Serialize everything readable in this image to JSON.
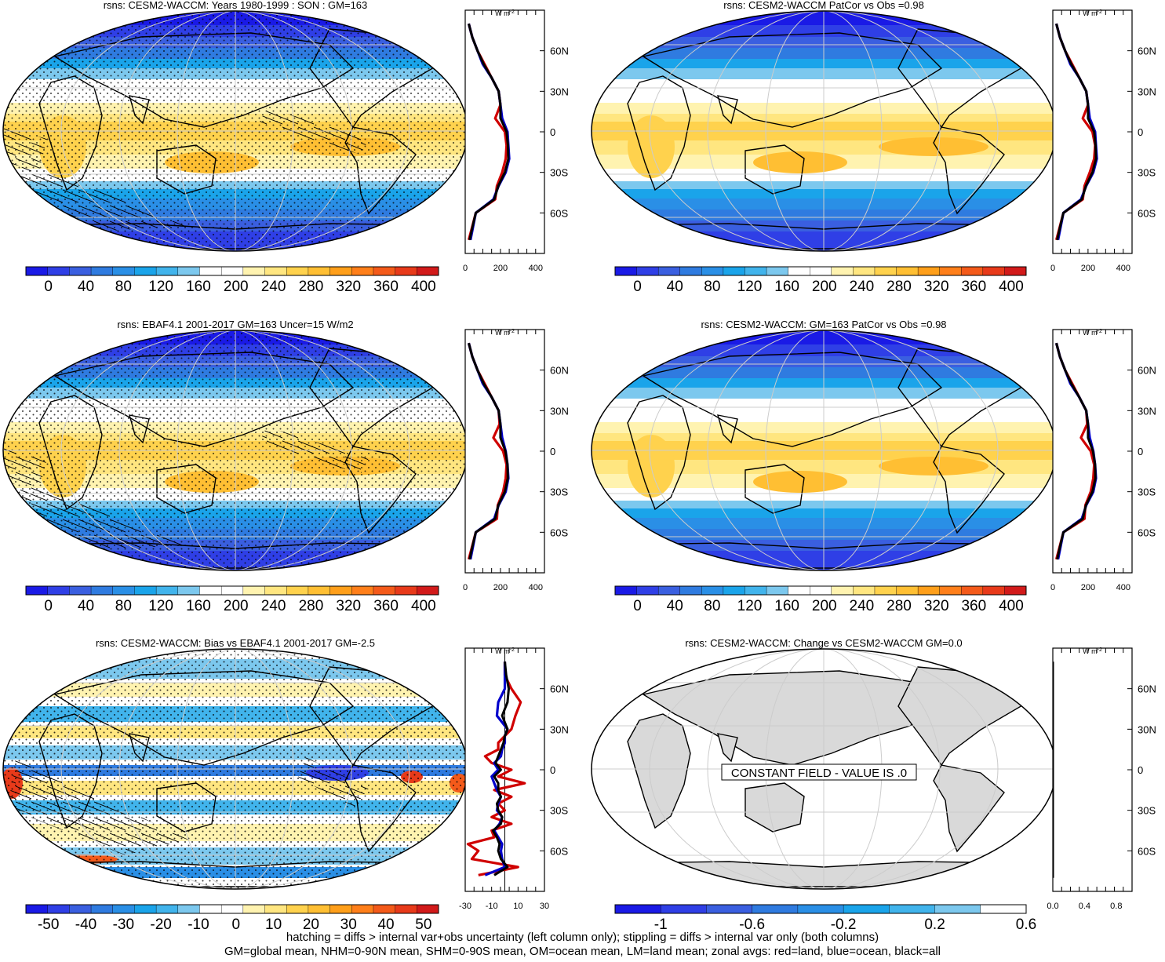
{
  "figure": {
    "footer_line1": "hatching = diffs > internal var+obs uncertainty (left column only); stippling = diffs > internal var only (both columns)",
    "footer_line2": "GM=global mean, NHM=0-90N mean, SHM=0-90S mean, OM=ocean mean, LM=land mean; zonal avgs: red=land, blue=ocean, black=all",
    "zonal_unit_main": "W m",
    "zonal_unit_exp": "-2",
    "lat_labels": [
      "60N",
      "30N",
      "0",
      "30S",
      "60S"
    ],
    "constant_field_text": "CONSTANT FIELD - VALUE IS .0"
  },
  "palettes": {
    "full": [
      "#1a1ae6",
      "#2f3fe6",
      "#3a5fe0",
      "#2f7be0",
      "#2a8fe6",
      "#1aa4ea",
      "#41b4ec",
      "#7cc8ee",
      "#ffffff",
      "#ffffff",
      "#fff3b0",
      "#ffe680",
      "#ffd24d",
      "#ffbf33",
      "#ff9f1a",
      "#ff7f1a",
      "#f45a1a",
      "#e83a1a",
      "#d21a1a"
    ],
    "bias": [
      "#1a1ae6",
      "#2f3fe6",
      "#3a5fe0",
      "#2f7be0",
      "#2a8fe6",
      "#1aa4ea",
      "#41b4ec",
      "#7cc8ee",
      "#ffffff",
      "#ffffff",
      "#fff3b0",
      "#ffe680",
      "#ffd24d",
      "#ffbf33",
      "#ff9f1a",
      "#ff7f1a",
      "#f45a1a",
      "#e83a1a",
      "#d21a1a"
    ],
    "change": [
      "#1a1ae6",
      "#2f3fe6",
      "#3a5fe0",
      "#2f7be0",
      "#2a8fe6",
      "#1aa4ea",
      "#41b4ec",
      "#7cc8ee",
      "#ffffff"
    ]
  },
  "chart_data": [
    {
      "type": "heatmap",
      "title": "rsns: CESM2-WACCM: Years 1980-1999 : SON : GM=163",
      "colorbar_ticks": [
        "0",
        "40",
        "80",
        "120",
        "160",
        "200",
        "240",
        "280",
        "320",
        "360",
        "400"
      ],
      "zonal_xticks": [
        "0",
        "200",
        "400"
      ],
      "zonal_xlim": [
        0,
        450
      ],
      "zonal_series": [
        {
          "color": "#d00000",
          "lat": [
            -80,
            -70,
            -60,
            -50,
            -40,
            -30,
            -20,
            -10,
            0,
            10,
            20,
            30,
            40,
            50,
            60,
            70,
            80
          ],
          "values": [
            20,
            40,
            60,
            170,
            180,
            210,
            230,
            235,
            225,
            170,
            200,
            190,
            150,
            110,
            70,
            40,
            20
          ]
        },
        {
          "color": "#0000cc",
          "lat": [
            -80,
            -70,
            -60,
            -50,
            -40,
            -30,
            -20,
            -10,
            0,
            10,
            20,
            30,
            40,
            50,
            60,
            70,
            80
          ],
          "values": [
            30,
            45,
            60,
            160,
            190,
            230,
            250,
            245,
            240,
            210,
            200,
            190,
            150,
            100,
            70,
            40,
            20
          ]
        },
        {
          "color": "#000000",
          "lat": [
            -80,
            -70,
            -60,
            -50,
            -40,
            -30,
            -20,
            -10,
            0,
            10,
            20,
            30,
            40,
            50,
            60,
            70,
            80
          ],
          "values": [
            25,
            42,
            60,
            165,
            188,
            225,
            245,
            243,
            235,
            200,
            200,
            190,
            150,
            105,
            70,
            40,
            20
          ]
        }
      ]
    },
    {
      "type": "heatmap",
      "title": "rsns: CESM2-WACCM PatCor vs Obs =0.98",
      "colorbar_ticks": [
        "0",
        "40",
        "80",
        "120",
        "160",
        "200",
        "240",
        "280",
        "320",
        "360",
        "400"
      ],
      "zonal_xticks": [
        "0",
        "200",
        "400"
      ],
      "zonal_xlim": [
        0,
        450
      ],
      "zonal_series": [
        {
          "color": "#d00000",
          "lat": [
            -80,
            -70,
            -60,
            -50,
            -40,
            -30,
            -20,
            -10,
            0,
            10,
            20,
            30,
            40,
            50,
            60,
            70,
            80
          ],
          "values": [
            20,
            40,
            60,
            170,
            180,
            210,
            235,
            240,
            225,
            170,
            200,
            190,
            150,
            110,
            70,
            40,
            20
          ]
        },
        {
          "color": "#0000cc",
          "lat": [
            -80,
            -70,
            -60,
            -50,
            -40,
            -30,
            -20,
            -10,
            0,
            10,
            20,
            30,
            40,
            50,
            60,
            70,
            80
          ],
          "values": [
            30,
            45,
            60,
            160,
            190,
            230,
            250,
            245,
            240,
            210,
            200,
            190,
            150,
            100,
            70,
            40,
            20
          ]
        },
        {
          "color": "#000000",
          "lat": [
            -80,
            -70,
            -60,
            -50,
            -40,
            -30,
            -20,
            -10,
            0,
            10,
            20,
            30,
            40,
            50,
            60,
            70,
            80
          ],
          "values": [
            25,
            42,
            60,
            165,
            188,
            225,
            245,
            243,
            235,
            200,
            200,
            190,
            150,
            105,
            70,
            40,
            20
          ]
        }
      ]
    },
    {
      "type": "heatmap",
      "title": "rsns: EBAF4.1 2001-2017 GM=163 Uncer=15 W/m2",
      "colorbar_ticks": [
        "0",
        "40",
        "80",
        "120",
        "160",
        "200",
        "240",
        "280",
        "320",
        "360",
        "400"
      ],
      "zonal_xticks": [
        "0",
        "200",
        "400"
      ],
      "zonal_xlim": [
        0,
        450
      ],
      "zonal_series": [
        {
          "color": "#d00000",
          "lat": [
            -80,
            -70,
            -60,
            -50,
            -40,
            -30,
            -20,
            -10,
            0,
            10,
            20,
            30,
            40,
            50,
            60,
            70,
            80
          ],
          "values": [
            20,
            40,
            60,
            180,
            185,
            215,
            230,
            235,
            215,
            160,
            195,
            190,
            150,
            110,
            70,
            40,
            20
          ]
        },
        {
          "color": "#0000cc",
          "lat": [
            -80,
            -70,
            -60,
            -50,
            -40,
            -30,
            -20,
            -10,
            0,
            10,
            20,
            30,
            40,
            50,
            60,
            70,
            80
          ],
          "values": [
            30,
            45,
            60,
            165,
            190,
            230,
            245,
            240,
            230,
            210,
            200,
            190,
            150,
            100,
            70,
            40,
            20
          ]
        },
        {
          "color": "#000000",
          "lat": [
            -80,
            -70,
            -60,
            -50,
            -40,
            -30,
            -20,
            -10,
            0,
            10,
            20,
            30,
            40,
            50,
            60,
            70,
            80
          ],
          "values": [
            25,
            42,
            60,
            170,
            188,
            225,
            242,
            240,
            228,
            200,
            200,
            190,
            150,
            105,
            70,
            40,
            20
          ]
        }
      ]
    },
    {
      "type": "heatmap",
      "title": "rsns: CESM2-WACCM: GM=163 PatCor vs Obs =0.98",
      "colorbar_ticks": [
        "0",
        "40",
        "80",
        "120",
        "160",
        "200",
        "240",
        "280",
        "320",
        "360",
        "400"
      ],
      "zonal_xticks": [
        "0",
        "200",
        "400"
      ],
      "zonal_xlim": [
        0,
        450
      ],
      "zonal_series": [
        {
          "color": "#d00000",
          "lat": [
            -80,
            -70,
            -60,
            -50,
            -40,
            -30,
            -20,
            -10,
            0,
            10,
            20,
            30,
            40,
            50,
            60,
            70,
            80
          ],
          "values": [
            20,
            40,
            60,
            180,
            185,
            215,
            230,
            235,
            215,
            160,
            195,
            190,
            150,
            110,
            70,
            40,
            20
          ]
        },
        {
          "color": "#0000cc",
          "lat": [
            -80,
            -70,
            -60,
            -50,
            -40,
            -30,
            -20,
            -10,
            0,
            10,
            20,
            30,
            40,
            50,
            60,
            70,
            80
          ],
          "values": [
            30,
            45,
            60,
            165,
            190,
            230,
            245,
            240,
            230,
            210,
            200,
            190,
            150,
            100,
            70,
            40,
            20
          ]
        },
        {
          "color": "#000000",
          "lat": [
            -80,
            -70,
            -60,
            -50,
            -40,
            -30,
            -20,
            -10,
            0,
            10,
            20,
            30,
            40,
            50,
            60,
            70,
            80
          ],
          "values": [
            25,
            42,
            60,
            170,
            188,
            225,
            242,
            240,
            228,
            200,
            200,
            190,
            150,
            105,
            70,
            40,
            20
          ]
        }
      ]
    },
    {
      "type": "heatmap",
      "title": "rsns: CESM2-WACCM: Bias vs EBAF4.1 2001-2017  GM=-2.5",
      "colorbar_ticks": [
        "-50",
        "-40",
        "-30",
        "-20",
        "-10",
        "0",
        "10",
        "20",
        "30",
        "40",
        "50"
      ],
      "zonal_xticks": [
        "-30",
        "-10",
        "10",
        "30"
      ],
      "zonal_xlim": [
        -30,
        30
      ],
      "zonal_series": [
        {
          "color": "#d00000",
          "lat": [
            -78,
            -72,
            -66,
            -60,
            -55,
            -50,
            -45,
            -40,
            -35,
            -30,
            -25,
            -20,
            -15,
            -10,
            -5,
            0,
            5,
            10,
            15,
            20,
            25,
            30,
            40,
            50,
            60,
            70,
            80
          ],
          "values": [
            -20,
            10,
            -25,
            -20,
            -28,
            -8,
            -10,
            5,
            -10,
            0,
            -5,
            5,
            -8,
            15,
            -5,
            5,
            -10,
            -15,
            -5,
            -5,
            0,
            5,
            8,
            12,
            5,
            0,
            0
          ]
        },
        {
          "color": "#0000cc",
          "lat": [
            -78,
            -72,
            -66,
            -60,
            -55,
            -50,
            -45,
            -40,
            -35,
            -30,
            -25,
            -20,
            -15,
            -10,
            -5,
            0,
            5,
            10,
            15,
            20,
            25,
            30,
            40,
            50,
            60,
            70,
            80
          ],
          "values": [
            -15,
            0,
            -2,
            -3,
            -2,
            -5,
            -8,
            -4,
            -2,
            -6,
            -5,
            -3,
            -6,
            -8,
            -10,
            -5,
            -8,
            -3,
            -2,
            0,
            0,
            2,
            -6,
            -5,
            0,
            0,
            0
          ]
        },
        {
          "color": "#000000",
          "lat": [
            -78,
            -72,
            -66,
            -60,
            -55,
            -50,
            -45,
            -40,
            -35,
            -30,
            -25,
            -20,
            -15,
            -10,
            -5,
            0,
            5,
            10,
            15,
            20,
            25,
            30,
            40,
            50,
            60,
            70,
            80
          ],
          "values": [
            -8,
            2,
            -3,
            -5,
            -4,
            -6,
            -9,
            -3,
            -2,
            -5,
            -6,
            -3,
            -5,
            -5,
            -8,
            -3,
            -7,
            -5,
            -3,
            -1,
            0,
            2,
            -2,
            2,
            3,
            1,
            0
          ]
        }
      ]
    },
    {
      "type": "heatmap",
      "title": "rsns: CESM2-WACCM: Change vs CESM2-WACCM GM=0.0",
      "colorbar_ticks": [
        "-1",
        "-0.6",
        "-0.2",
        "0.2",
        "0.6"
      ],
      "zonal_xticks": [
        "0.0",
        "0.4",
        "0.8"
      ],
      "zonal_xlim": [
        0,
        1.0
      ],
      "zonal_series": [
        {
          "color": "#000000",
          "lat": [
            -80,
            80
          ],
          "values": [
            0,
            0
          ]
        }
      ]
    }
  ]
}
